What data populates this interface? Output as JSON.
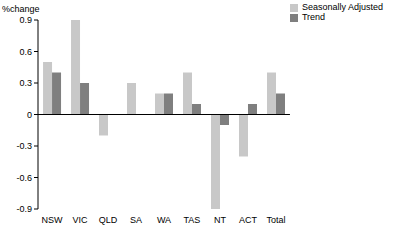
{
  "chart_data": {
    "type": "bar",
    "y_label": "%change",
    "categories": [
      "NSW",
      "VIC",
      "QLD",
      "SA",
      "WA",
      "TAS",
      "NT",
      "ACT",
      "Total"
    ],
    "series": [
      {
        "name": "Seasonally Adjusted",
        "color": "#c8c8c8",
        "values": [
          0.5,
          0.9,
          -0.2,
          0.3,
          0.2,
          0.4,
          -0.9,
          -0.4,
          0.4
        ]
      },
      {
        "name": "Trend",
        "color": "#7f7f7f",
        "values": [
          0.4,
          0.3,
          0.0,
          0.0,
          0.2,
          0.1,
          -0.1,
          0.1,
          0.2
        ]
      }
    ],
    "ylim": [
      -0.9,
      0.9
    ],
    "yticks": [
      -0.9,
      -0.6,
      -0.3,
      0,
      0.3,
      0.6,
      0.9
    ],
    "legend": "upper right"
  }
}
